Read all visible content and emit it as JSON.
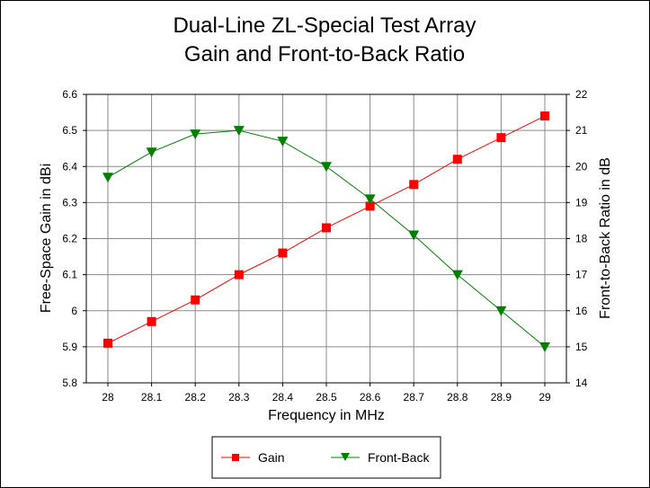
{
  "chart_data": {
    "type": "line",
    "title": "Dual-Line ZL-Special Test Array",
    "subtitle": "Gain and Front-to-Back Ratio",
    "xlabel": "Frequency in MHz",
    "ylabel_left": "Free-Space Gain in dBi",
    "ylabel_right": "Front-to-Back Ratio in dB",
    "x": [
      "28",
      "28.1",
      "28.2",
      "28.3",
      "28.4",
      "28.5",
      "28.6",
      "28.7",
      "28.8",
      "28.9",
      "29"
    ],
    "ylim_left": [
      5.8,
      6.6
    ],
    "yticks_left": [
      "5.8",
      "5.9",
      "6",
      "6.1",
      "6.2",
      "6.3",
      "6.4",
      "6.5",
      "6.6"
    ],
    "ylim_right": [
      14,
      22
    ],
    "yticks_right": [
      "14",
      "15",
      "16",
      "17",
      "18",
      "19",
      "20",
      "21",
      "22"
    ],
    "grid": true,
    "legend_position": "bottom-center",
    "series": [
      {
        "name": "Gain",
        "axis": "left",
        "color": "#ff0000",
        "marker": "square",
        "values": [
          5.91,
          5.97,
          6.03,
          6.1,
          6.16,
          6.23,
          6.29,
          6.35,
          6.42,
          6.48,
          6.54
        ]
      },
      {
        "name": "Front-Back",
        "axis": "right",
        "color": "#008000",
        "marker": "triangle-down",
        "values": [
          19.7,
          20.4,
          20.9,
          21.0,
          20.7,
          20.0,
          19.1,
          18.1,
          17.0,
          16.0,
          15.0
        ]
      }
    ]
  }
}
